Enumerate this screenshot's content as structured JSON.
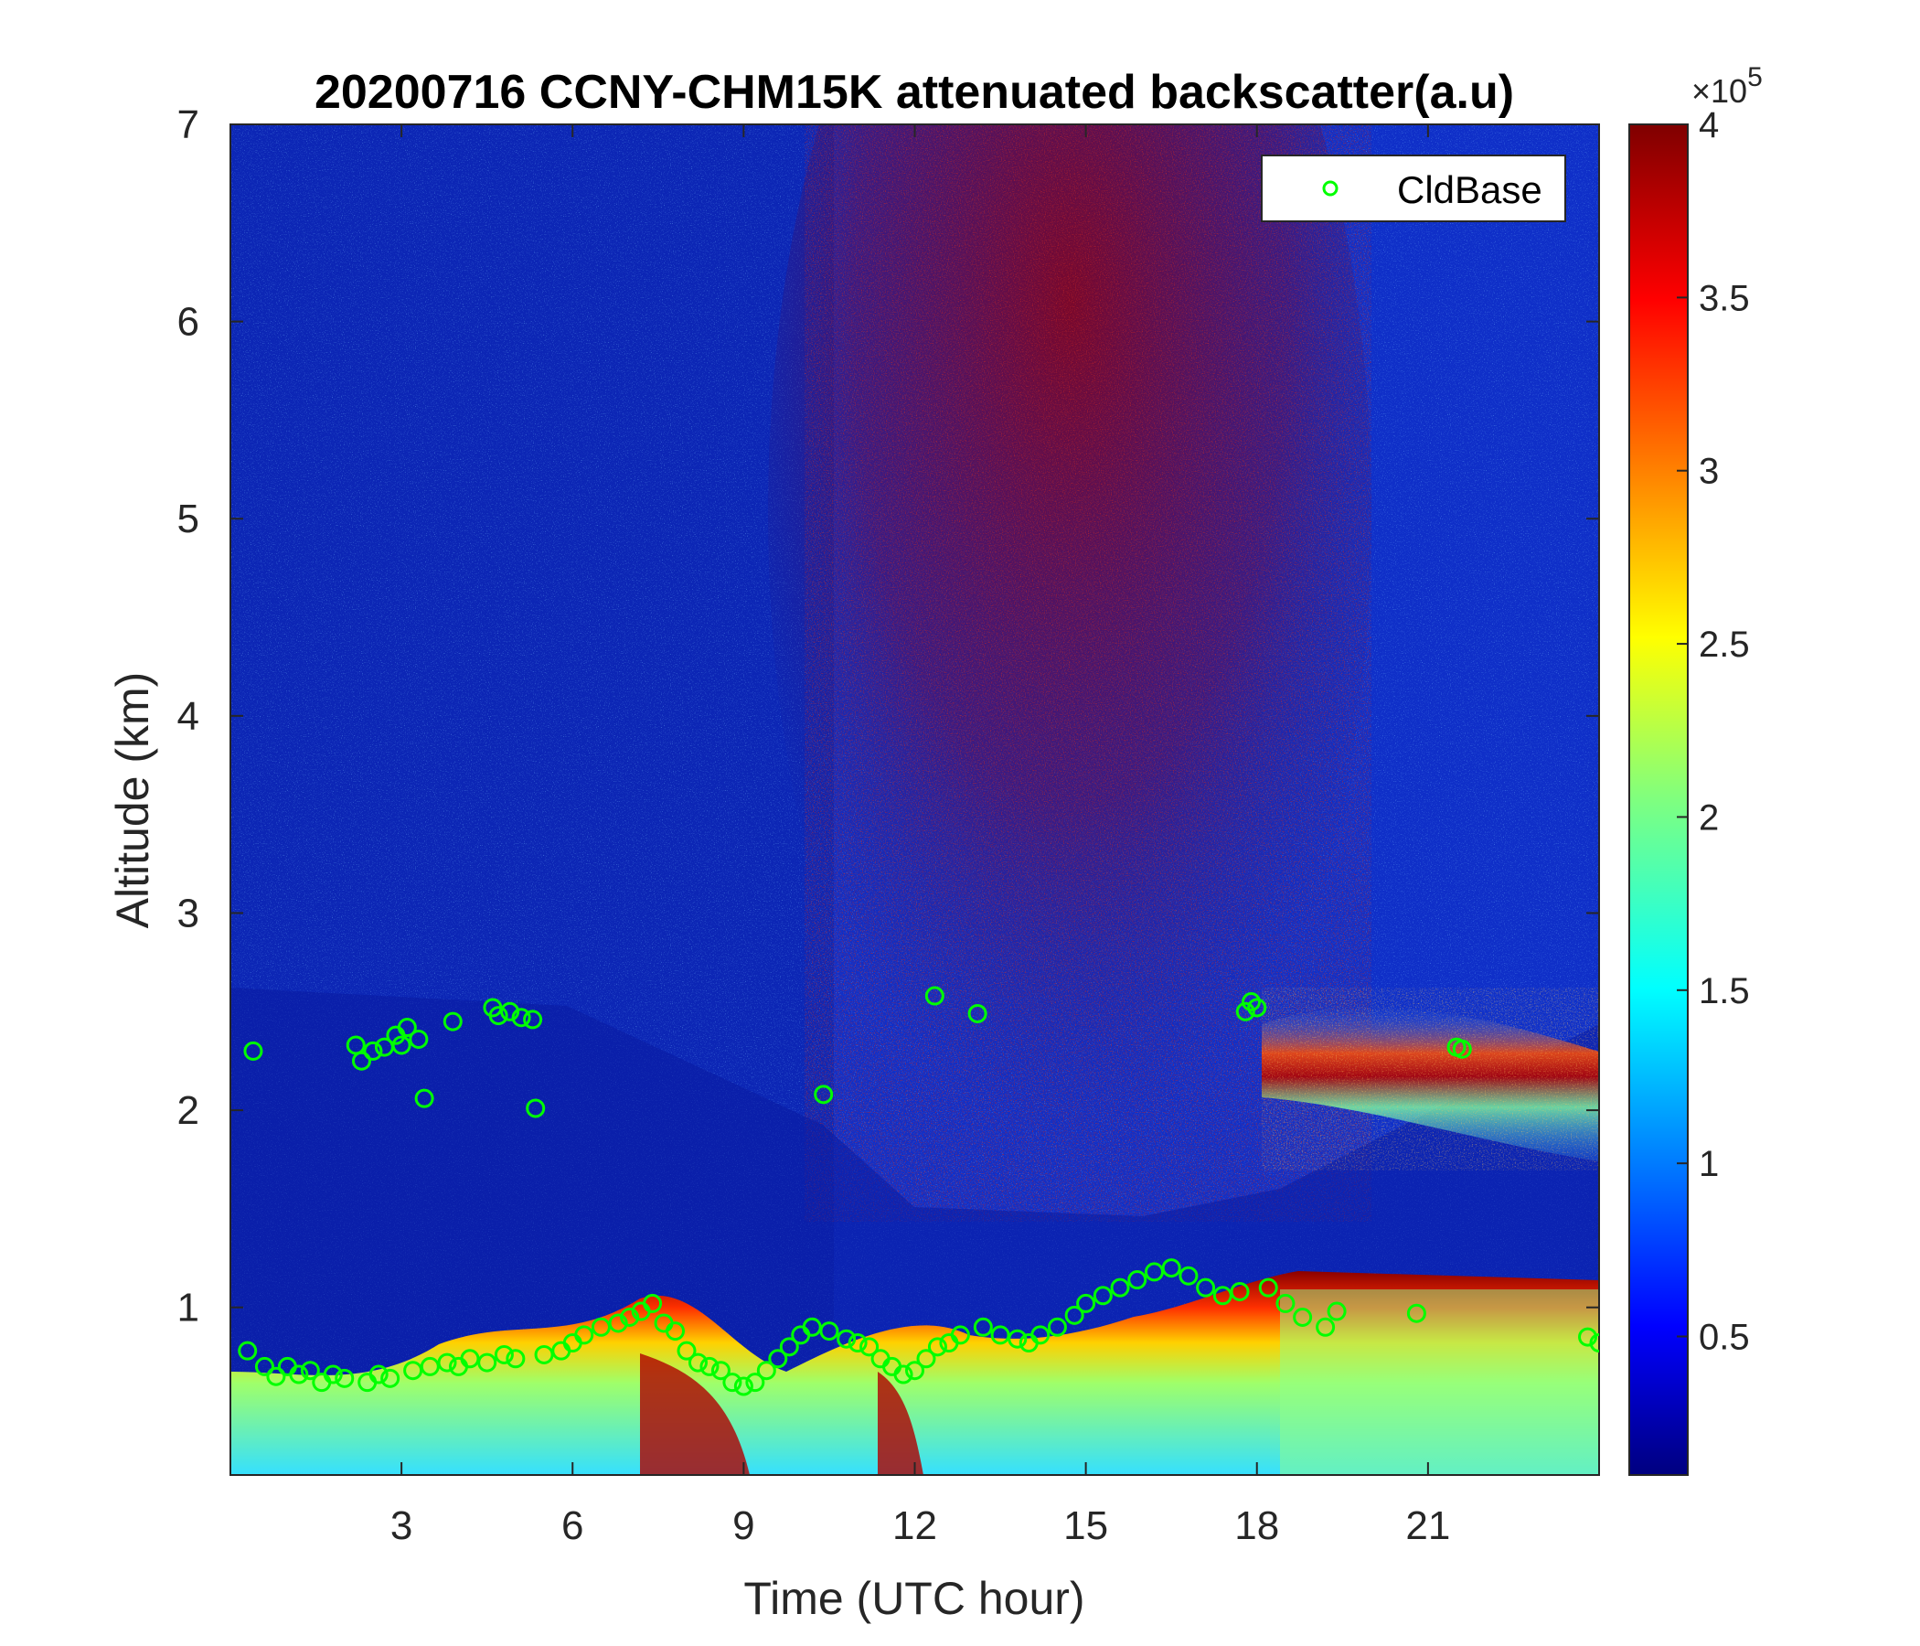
{
  "chart_data": {
    "type": "heatmap",
    "title": "20200716 CCNY-CHM15K attenuated backscatter(a.u)",
    "xlabel": "Time (UTC hour)",
    "ylabel": "Altitude (km)",
    "xlim": [
      0,
      24
    ],
    "ylim": [
      0.15,
      7
    ],
    "xticks": [
      3,
      6,
      9,
      12,
      15,
      18,
      21
    ],
    "yticks": [
      1,
      2,
      3,
      4,
      5,
      6,
      7
    ],
    "colorbar": {
      "colormap": "jet",
      "range": [
        0.1,
        4
      ],
      "ticks": [
        0.5,
        1,
        1.5,
        2,
        2.5,
        3,
        3.5,
        4
      ],
      "tick_labels": [
        "0.5",
        "1",
        "1.5",
        "2",
        "2.5",
        "3",
        "3.5",
        "4"
      ],
      "exponent_prefix": "×10",
      "exponent_power": "5"
    },
    "legend": {
      "placement": "top-right",
      "entries": [
        {
          "label": "CldBase",
          "marker": "circle",
          "color": "#00ff00"
        }
      ]
    },
    "series": [
      {
        "name": "CldBase",
        "marker": "open-circle",
        "color": "#00ff00",
        "points": [
          [
            0.3,
            0.78
          ],
          [
            0.4,
            2.3
          ],
          [
            0.6,
            0.7
          ],
          [
            0.8,
            0.65
          ],
          [
            1.0,
            0.7
          ],
          [
            1.2,
            0.66
          ],
          [
            1.4,
            0.68
          ],
          [
            1.6,
            0.62
          ],
          [
            1.8,
            0.66
          ],
          [
            2.0,
            0.64
          ],
          [
            2.2,
            2.33
          ],
          [
            2.3,
            2.25
          ],
          [
            2.4,
            0.62
          ],
          [
            2.5,
            2.3
          ],
          [
            2.6,
            0.66
          ],
          [
            2.7,
            2.32
          ],
          [
            2.8,
            0.64
          ],
          [
            2.9,
            2.38
          ],
          [
            3.0,
            2.33
          ],
          [
            3.1,
            2.42
          ],
          [
            3.2,
            0.68
          ],
          [
            3.3,
            2.36
          ],
          [
            3.4,
            2.06
          ],
          [
            3.5,
            0.7
          ],
          [
            3.8,
            0.72
          ],
          [
            3.9,
            2.45
          ],
          [
            4.0,
            0.7
          ],
          [
            4.2,
            0.74
          ],
          [
            4.5,
            0.72
          ],
          [
            4.6,
            2.52
          ],
          [
            4.7,
            2.48
          ],
          [
            4.8,
            0.76
          ],
          [
            4.9,
            2.5
          ],
          [
            5.0,
            0.74
          ],
          [
            5.1,
            2.47
          ],
          [
            5.3,
            2.46
          ],
          [
            5.35,
            2.01
          ],
          [
            5.5,
            0.76
          ],
          [
            5.8,
            0.78
          ],
          [
            6.0,
            0.82
          ],
          [
            6.2,
            0.86
          ],
          [
            6.5,
            0.9
          ],
          [
            6.8,
            0.92
          ],
          [
            7.0,
            0.95
          ],
          [
            7.2,
            0.98
          ],
          [
            7.4,
            1.02
          ],
          [
            7.6,
            0.92
          ],
          [
            7.8,
            0.88
          ],
          [
            8.0,
            0.78
          ],
          [
            8.2,
            0.72
          ],
          [
            8.4,
            0.7
          ],
          [
            8.6,
            0.68
          ],
          [
            8.8,
            0.62
          ],
          [
            9.0,
            0.6
          ],
          [
            9.2,
            0.62
          ],
          [
            9.4,
            0.68
          ],
          [
            9.6,
            0.74
          ],
          [
            9.8,
            0.8
          ],
          [
            10.0,
            0.86
          ],
          [
            10.2,
            0.9
          ],
          [
            10.4,
            2.08
          ],
          [
            10.5,
            0.88
          ],
          [
            10.8,
            0.84
          ],
          [
            11.0,
            0.82
          ],
          [
            11.2,
            0.8
          ],
          [
            11.4,
            0.74
          ],
          [
            11.6,
            0.7
          ],
          [
            11.8,
            0.66
          ],
          [
            12.0,
            0.68
          ],
          [
            12.2,
            0.74
          ],
          [
            12.4,
            0.8
          ],
          [
            12.35,
            2.58
          ],
          [
            12.6,
            0.82
          ],
          [
            12.8,
            0.86
          ],
          [
            13.1,
            2.49
          ],
          [
            13.2,
            0.9
          ],
          [
            13.5,
            0.86
          ],
          [
            13.8,
            0.84
          ],
          [
            14.0,
            0.82
          ],
          [
            14.2,
            0.86
          ],
          [
            14.5,
            0.9
          ],
          [
            14.8,
            0.96
          ],
          [
            15.0,
            1.02
          ],
          [
            15.3,
            1.06
          ],
          [
            15.6,
            1.1
          ],
          [
            15.9,
            1.14
          ],
          [
            16.2,
            1.18
          ],
          [
            16.5,
            1.2
          ],
          [
            16.8,
            1.16
          ],
          [
            17.1,
            1.1
          ],
          [
            17.4,
            1.06
          ],
          [
            17.7,
            1.08
          ],
          [
            17.8,
            2.5
          ],
          [
            17.9,
            2.55
          ],
          [
            18.0,
            2.52
          ],
          [
            18.2,
            1.1
          ],
          [
            18.5,
            1.02
          ],
          [
            18.8,
            0.95
          ],
          [
            19.2,
            0.9
          ],
          [
            19.4,
            0.98
          ],
          [
            20.8,
            0.97
          ],
          [
            21.5,
            2.32
          ],
          [
            21.6,
            2.31
          ],
          [
            23.8,
            0.85
          ],
          [
            24.0,
            0.82
          ]
        ]
      }
    ]
  }
}
